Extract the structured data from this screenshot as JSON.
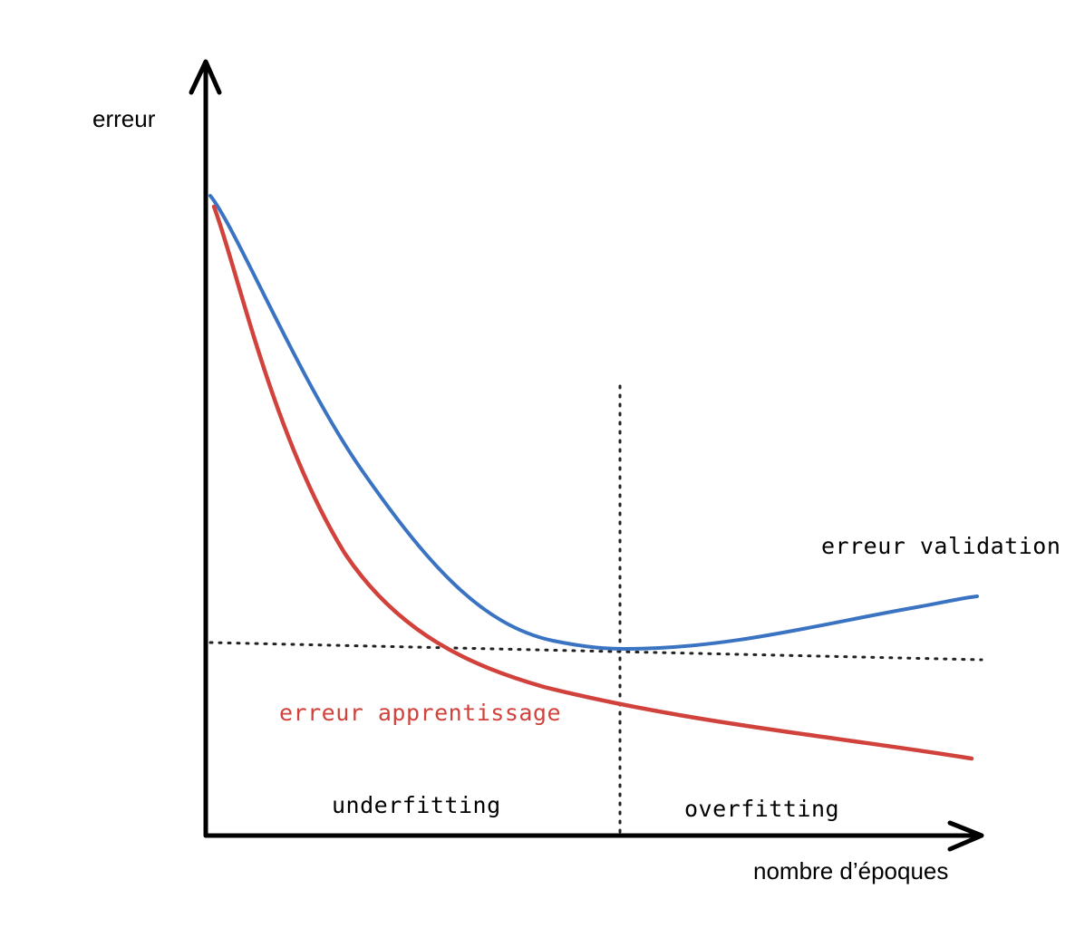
{
  "axes": {
    "y_label": "erreur",
    "x_label": "nombre d’époques"
  },
  "curves": {
    "validation": {
      "label": "erreur validation",
      "color": "#3a73c2"
    },
    "training": {
      "label": "erreur apprentissage",
      "color": "#d0423b"
    }
  },
  "regions": {
    "left": "underfitting",
    "right": "overfitting"
  }
}
